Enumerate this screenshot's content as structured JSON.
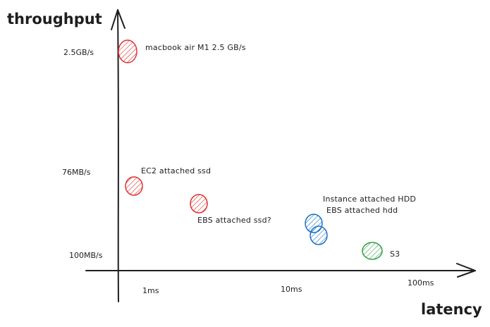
{
  "axes": {
    "y_title": "throughput",
    "x_title": "latency"
  },
  "y_ticks": [
    "2.5GB/s",
    "76MB/s",
    "100MB/s"
  ],
  "x_ticks": [
    "1ms",
    "10ms",
    "100ms"
  ],
  "points": [
    {
      "label": "macbook air M1 2.5 GB/s",
      "color": "#e03131"
    },
    {
      "label": "EC2 attached ssd",
      "color": "#e03131"
    },
    {
      "label": "EBS attached ssd?",
      "color": "#e03131"
    },
    {
      "label": "Instance attached HDD",
      "color": "#1971c2"
    },
    {
      "label": "EBS attached hdd",
      "color": "#1971c2"
    },
    {
      "label": "S3",
      "color": "#2f9e44"
    }
  ]
}
